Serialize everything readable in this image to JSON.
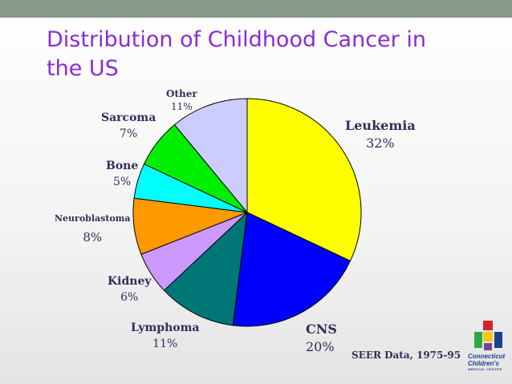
{
  "slide": {
    "title": "Distribution of Childhood Cancer in the US"
  },
  "chart_data": {
    "type": "pie",
    "title": "Distribution of Childhood Cancer in the US",
    "slices": [
      {
        "name": "Leukemia",
        "label": "Leukemia",
        "percent_label": "32%",
        "value": 32,
        "color": "#ffff00"
      },
      {
        "name": "CNS",
        "label": "CNS",
        "percent_label": "20%",
        "value": 20,
        "color": "#0000ff"
      },
      {
        "name": "Lymphoma",
        "label": "Lymphoma",
        "percent_label": "11%",
        "value": 11,
        "color": "#007777"
      },
      {
        "name": "Kidney",
        "label": "Kidney",
        "percent_label": "6%",
        "value": 6,
        "color": "#cc99ff"
      },
      {
        "name": "Neuroblastoma",
        "label": "Neuroblastoma",
        "percent_label": "8%",
        "value": 8,
        "color": "#ff9900"
      },
      {
        "name": "Bone",
        "label": "Bone",
        "percent_label": "5%",
        "value": 5,
        "color": "#00ffff"
      },
      {
        "name": "Sarcoma",
        "label": "Sarcoma",
        "percent_label": "7%",
        "value": 7,
        "color": "#00ee00"
      },
      {
        "name": "Other",
        "label": "Other",
        "percent_label": "11%",
        "value": 11,
        "color": "#ccccff"
      }
    ],
    "source_note": "SEER Data, 1975-95"
  },
  "logo": {
    "line1": "Connecticut",
    "line2": "Children's",
    "line3": "MEDICAL CENTER",
    "colors": {
      "red": "#d2232a",
      "green": "#2aa84a",
      "blue": "#1c3f94",
      "yellow": "#f6c70f",
      "purple": "#7b3f98"
    }
  },
  "theme": {
    "title_color": "#8b2bd6",
    "label_color": "#2e2e5a",
    "bar_color": "#8a9a8a"
  }
}
